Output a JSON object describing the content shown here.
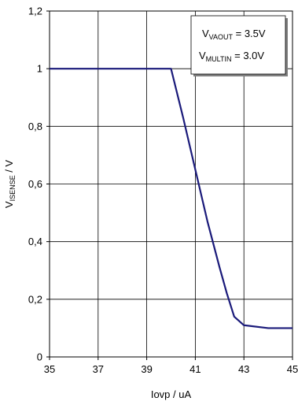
{
  "chart_data": {
    "type": "line",
    "xlabel": "Iovp / uA",
    "ylabel_main": "V",
    "ylabel_sub": "ISENSE",
    "ylabel_unit": " / V",
    "xlim": [
      35,
      45
    ],
    "ylim": [
      0,
      1.2
    ],
    "x_ticks": [
      35,
      37,
      39,
      41,
      43,
      45
    ],
    "x_tick_labels": [
      "35",
      "37",
      "39",
      "41",
      "43",
      "45"
    ],
    "y_ticks": [
      0,
      0.2,
      0.4,
      0.6,
      0.8,
      1.0,
      1.2
    ],
    "y_tick_labels": [
      "0",
      "0,2",
      "0,4",
      "0,6",
      "0,8",
      "1",
      "1,2"
    ],
    "grid": true,
    "legend_placement": "top-right",
    "annotation": [
      {
        "main": "V",
        "sub": "VAOUT",
        "rest": " = 3.5V"
      },
      {
        "main": "V",
        "sub": "MULTIN",
        "rest": " = 3.0V"
      }
    ],
    "series": [
      {
        "color": "#1a1a7a",
        "x": [
          35,
          40,
          40.5,
          41,
          41.5,
          42,
          42.3,
          42.6,
          43,
          44,
          45
        ],
        "y": [
          1.0,
          1.0,
          0.83,
          0.65,
          0.47,
          0.31,
          0.22,
          0.14,
          0.11,
          0.1,
          0.1
        ]
      }
    ]
  }
}
